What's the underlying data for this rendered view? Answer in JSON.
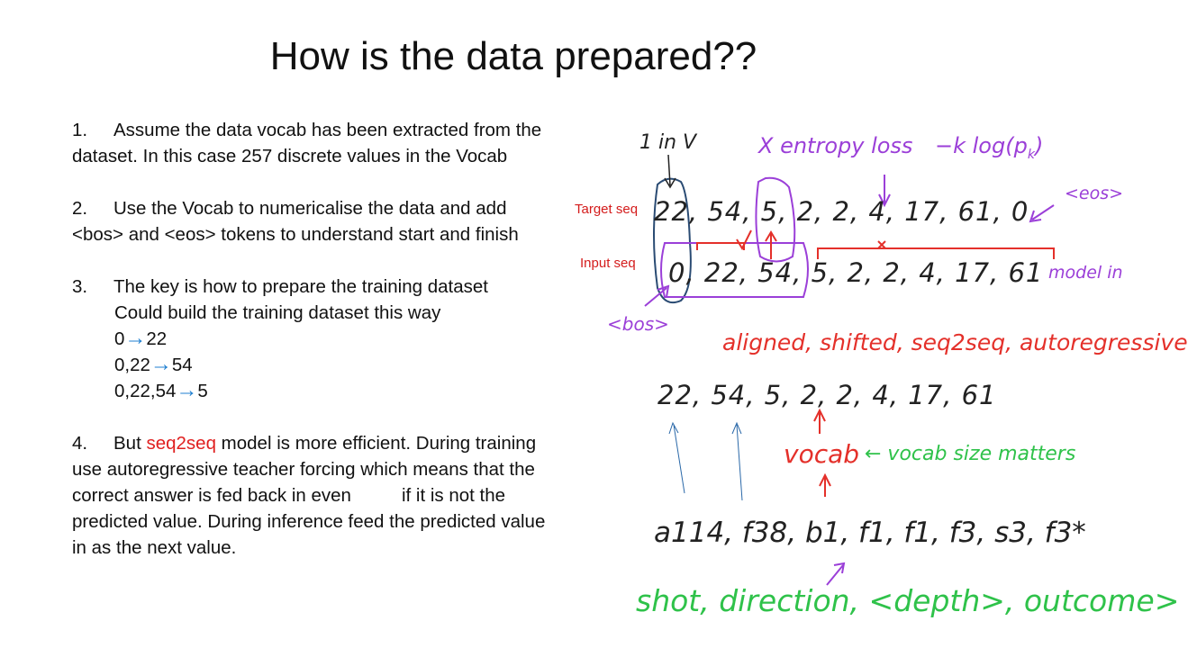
{
  "slide": {
    "title": "How is the data prepared??"
  },
  "points": {
    "p1": {
      "num": "1.",
      "text": "Assume the data vocab has been extracted from the dataset. In this case 257 discrete values in the Vocab"
    },
    "p2": {
      "num": "2.",
      "text": "Use the Vocab to numericalise the data and add <bos> and <eos> tokens to understand start and  finish"
    },
    "p3": {
      "num": "3.",
      "line1": "The key is how to prepare the training dataset",
      "line2": "Could build the training dataset this way",
      "ex1_in": "0",
      "ex1_out": "22",
      "ex2_in": "0,22",
      "ex2_out": "54",
      "ex3_in": "0,22,54",
      "ex3_out": "5",
      "arrow": "→"
    },
    "p4": {
      "num": "4.",
      "pre": "But ",
      "highlight": "seq2seq",
      "post1": " model is more efficient. During training use autoregressive teacher forcing which means that the correct answer is fed back in even",
      "post2": "if it is not the predicted value. During inference feed the predicted value in as the next value."
    }
  },
  "annotations": {
    "target_label": "Target seq",
    "input_label": "Input seq",
    "one_in_v": "1 in V",
    "xentropy": "X entropy loss",
    "klog": "−k log(p",
    "klog_sub": "k",
    "klog_end": ")",
    "eos": "<eos>",
    "bos": "<bos>",
    "target_seq": "22, 54, 5, 2, 2, 4, 17, 61, 0",
    "input_seq": "0, 22, 54, 5, 2, 2, 4, 17, 61",
    "model_in": "model in",
    "aligned": "aligned, shifted, seq2seq, autoregressive",
    "seq3": "22, 54, 5, 2, 2, 4, 17, 61",
    "vocab": "vocab",
    "vocab_note": "← vocab size matters",
    "codes": "a114, f38, b1, f1, f1, f3, s3, f3*",
    "shot_line": "shot, direction, <depth>, outcome>"
  },
  "colors": {
    "title": "#111111",
    "body_text": "#111111",
    "highlight": "#e02020",
    "arrow": "#1f7fd0",
    "purple": "#9b3fd8",
    "red": "#e4302a",
    "green": "#2fc24a",
    "navy": "#2a4b73",
    "ink": "#222222"
  }
}
